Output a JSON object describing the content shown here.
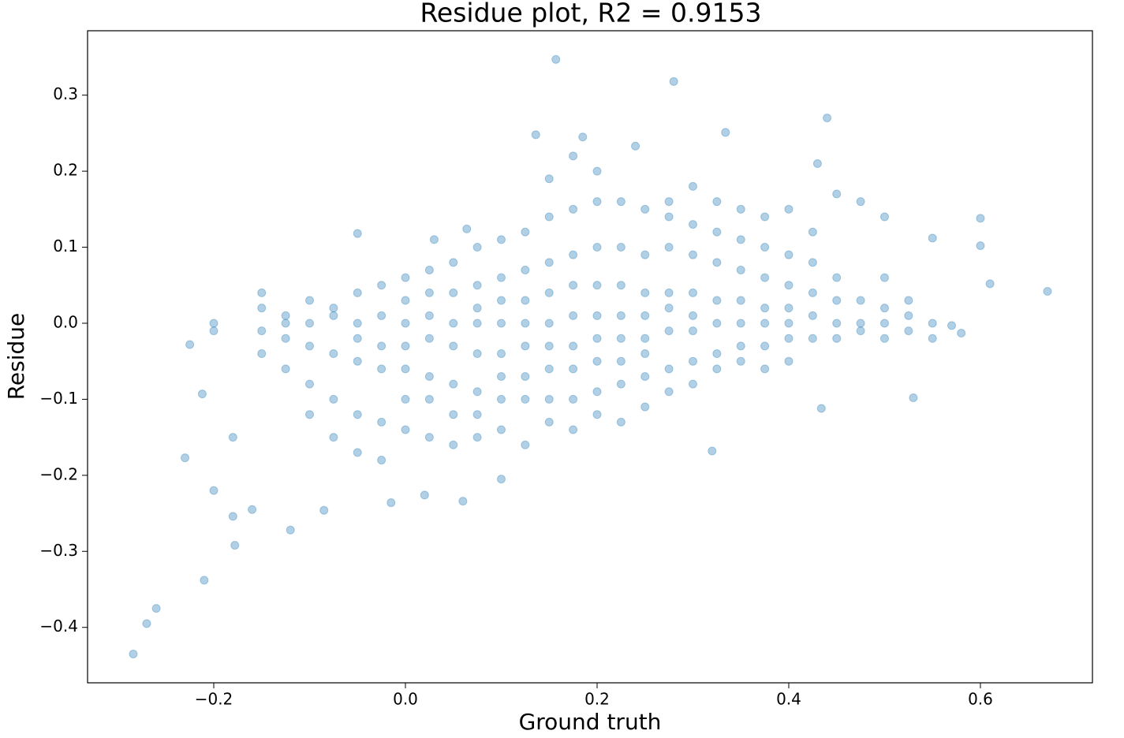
{
  "chart_data": {
    "type": "scatter",
    "title": "Residue plot, R2 = 0.9153",
    "x_label": "Ground truth",
    "y_label": "Residue",
    "color": "#1f77b4",
    "xlim": [
      -0.3317,
      0.7169
    ],
    "ylim": [
      -0.4729,
      0.3847
    ],
    "xticks": [
      {
        "value": -0.2,
        "label": "−0.2"
      },
      {
        "value": 0,
        "label": "0.0"
      },
      0.2,
      0.4,
      0.6
    ],
    "yticks": [
      {
        "value": -0.4,
        "label": "−0.4"
      },
      {
        "value": -0.3,
        "label": "−0.3"
      },
      {
        "value": -0.2,
        "label": "−0.2"
      },
      {
        "value": -0.1,
        "label": "−0.1"
      },
      {
        "value": 0,
        "label": "0.0"
      },
      0.1,
      0.2,
      0.3
    ],
    "x": [
      -0.284,
      -0.27,
      -0.26,
      -0.21,
      -0.178,
      -0.12,
      -0.18,
      -0.16,
      -0.085,
      -0.23,
      -0.2,
      -0.18,
      -0.225,
      -0.212,
      -0.015,
      0.06,
      0.02,
      0.1,
      0.32,
      0.434,
      0.53,
      -0.05,
      0.03,
      0.064,
      0.157,
      0.28,
      0.44,
      0.334,
      0.136,
      0.185,
      0.24,
      0.43,
      0.55,
      0.6,
      0.6,
      0.61,
      0.67,
      0.58,
      0.57,
      -0.2,
      -0.2,
      -0.15,
      -0.15,
      -0.15,
      -0.15,
      -0.125,
      -0.125,
      -0.125,
      -0.125,
      -0.1,
      -0.1,
      -0.1,
      -0.1,
      -0.1,
      -0.075,
      -0.075,
      -0.075,
      -0.075,
      -0.075,
      -0.05,
      -0.05,
      -0.05,
      -0.05,
      -0.05,
      -0.05,
      -0.025,
      -0.025,
      -0.025,
      -0.025,
      -0.025,
      -0.025,
      0.0,
      0.0,
      0.0,
      0.0,
      0.0,
      0.0,
      0.0,
      0.025,
      0.025,
      0.025,
      0.025,
      0.025,
      0.025,
      0.025,
      0.05,
      0.05,
      0.05,
      0.05,
      0.05,
      0.05,
      0.05,
      0.075,
      0.075,
      0.075,
      0.075,
      0.075,
      0.075,
      0.075,
      0.075,
      0.1,
      0.1,
      0.1,
      0.1,
      0.1,
      0.1,
      0.1,
      0.1,
      0.125,
      0.125,
      0.125,
      0.125,
      0.125,
      0.125,
      0.125,
      0.125,
      0.15,
      0.15,
      0.15,
      0.15,
      0.15,
      0.15,
      0.15,
      0.15,
      0.15,
      0.175,
      0.175,
      0.175,
      0.175,
      0.175,
      0.175,
      0.175,
      0.175,
      0.175,
      0.2,
      0.2,
      0.2,
      0.2,
      0.2,
      0.2,
      0.2,
      0.2,
      0.2,
      0.225,
      0.225,
      0.225,
      0.225,
      0.225,
      0.225,
      0.225,
      0.225,
      0.25,
      0.25,
      0.25,
      0.25,
      0.25,
      0.25,
      0.25,
      0.25,
      0.275,
      0.275,
      0.275,
      0.275,
      0.275,
      0.275,
      0.275,
      0.275,
      0.3,
      0.3,
      0.3,
      0.3,
      0.3,
      0.3,
      0.3,
      0.3,
      0.325,
      0.325,
      0.325,
      0.325,
      0.325,
      0.325,
      0.325,
      0.35,
      0.35,
      0.35,
      0.35,
      0.35,
      0.35,
      0.35,
      0.375,
      0.375,
      0.375,
      0.375,
      0.375,
      0.375,
      0.375,
      0.4,
      0.4,
      0.4,
      0.4,
      0.4,
      0.4,
      0.4,
      0.425,
      0.425,
      0.425,
      0.425,
      0.425,
      0.45,
      0.45,
      0.45,
      0.45,
      0.45,
      0.475,
      0.475,
      0.475,
      0.475,
      0.5,
      0.5,
      0.5,
      0.5,
      0.5,
      0.525,
      0.525,
      0.525,
      0.55,
      0.55
    ],
    "values": [
      -0.435,
      -0.395,
      -0.375,
      -0.338,
      -0.292,
      -0.272,
      -0.254,
      -0.245,
      -0.246,
      -0.177,
      -0.22,
      -0.15,
      -0.028,
      -0.093,
      -0.236,
      -0.234,
      -0.226,
      -0.205,
      -0.168,
      -0.112,
      -0.098,
      0.118,
      0.11,
      0.124,
      0.347,
      0.318,
      0.27,
      0.251,
      0.248,
      0.245,
      0.233,
      0.21,
      0.112,
      0.102,
      0.138,
      0.052,
      0.042,
      -0.013,
      -0.003,
      0.0,
      -0.01,
      0.02,
      -0.01,
      -0.04,
      0.04,
      0.01,
      -0.02,
      -0.06,
      0.0,
      0.03,
      -0.03,
      -0.08,
      0.0,
      -0.12,
      0.02,
      -0.04,
      -0.1,
      0.01,
      -0.15,
      0.04,
      -0.05,
      -0.12,
      0.0,
      -0.02,
      -0.17,
      0.05,
      -0.06,
      -0.13,
      0.01,
      -0.03,
      -0.18,
      0.06,
      -0.06,
      -0.14,
      0.0,
      -0.03,
      0.03,
      -0.1,
      0.07,
      -0.07,
      -0.15,
      0.01,
      -0.02,
      0.04,
      -0.1,
      0.08,
      -0.08,
      -0.16,
      0.0,
      -0.03,
      0.04,
      -0.12,
      0.1,
      -0.09,
      -0.15,
      0.02,
      -0.04,
      0.05,
      -0.12,
      0.0,
      0.11,
      -0.1,
      -0.14,
      0.03,
      -0.04,
      0.06,
      -0.07,
      0.0,
      0.12,
      -0.1,
      -0.16,
      0.03,
      -0.03,
      0.07,
      -0.07,
      0.0,
      0.14,
      -0.1,
      -0.13,
      0.04,
      -0.03,
      0.08,
      -0.06,
      0.0,
      0.19,
      0.15,
      -0.1,
      -0.14,
      0.05,
      -0.03,
      0.09,
      -0.06,
      0.01,
      0.22,
      0.16,
      -0.09,
      -0.12,
      0.05,
      -0.02,
      0.1,
      -0.05,
      0.01,
      0.2,
      0.16,
      -0.08,
      -0.13,
      0.05,
      -0.02,
      0.1,
      -0.05,
      0.01,
      0.15,
      -0.07,
      -0.11,
      0.04,
      -0.02,
      0.09,
      -0.04,
      0.01,
      0.16,
      -0.06,
      -0.09,
      0.04,
      -0.01,
      0.1,
      0.02,
      0.14,
      0.18,
      -0.05,
      -0.08,
      0.04,
      -0.01,
      0.09,
      0.01,
      0.13,
      0.16,
      -0.04,
      -0.06,
      0.03,
      0.0,
      0.08,
      0.12,
      0.15,
      -0.03,
      -0.05,
      0.03,
      0.0,
      0.07,
      0.11,
      0.14,
      -0.03,
      -0.06,
      0.02,
      0.0,
      0.06,
      0.1,
      0.15,
      -0.02,
      -0.05,
      0.02,
      0.0,
      0.05,
      0.09,
      0.12,
      -0.02,
      0.01,
      0.04,
      0.08,
      0.17,
      -0.02,
      0.0,
      0.03,
      0.06,
      0.16,
      -0.01,
      0.0,
      0.03,
      0.14,
      -0.02,
      0.0,
      0.02,
      0.06,
      -0.01,
      0.01,
      0.03,
      0.0,
      -0.02
    ]
  }
}
